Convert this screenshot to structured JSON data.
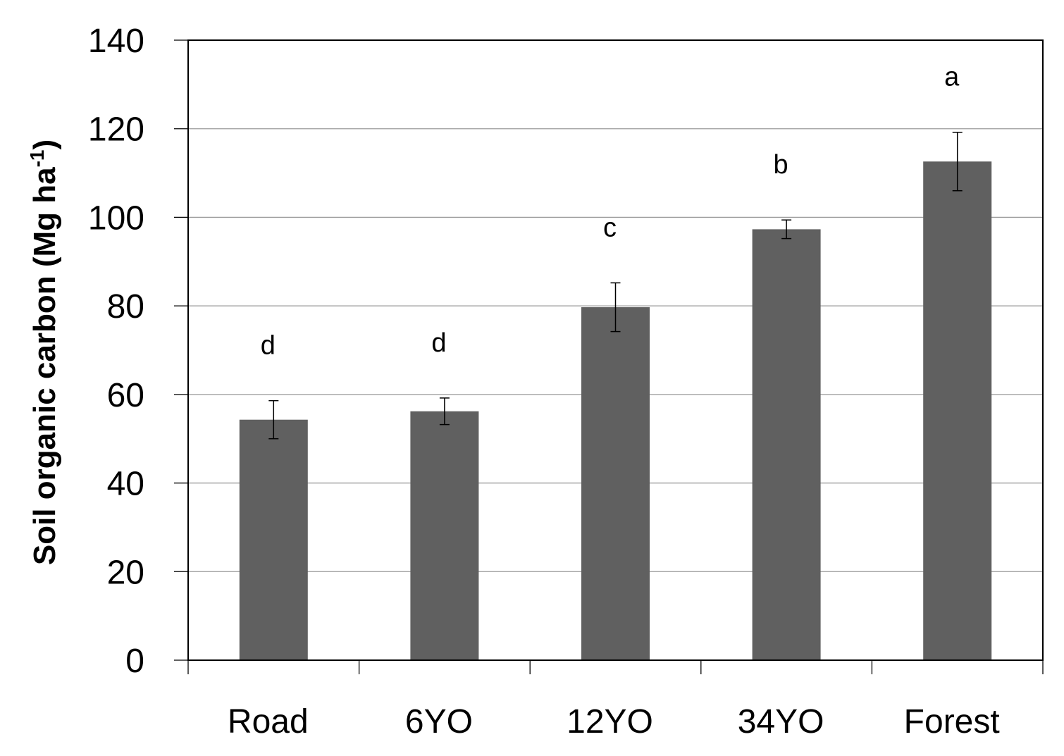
{
  "chart_data": {
    "type": "bar",
    "title": "",
    "xlabel": "",
    "ylabel": {
      "main": "Soil organic carbon (Mg ha",
      "superscript": "-1",
      "close": ")"
    },
    "ylim": [
      0,
      140
    ],
    "yticks": [
      "0",
      "20",
      "40",
      "60",
      "80",
      "100",
      "120",
      "140"
    ],
    "grid": true,
    "legend": "none",
    "categories": [
      "Road",
      "6YO",
      "12YO",
      "34YO",
      "Forest"
    ],
    "series": [
      {
        "values": [
          54.3,
          56.2,
          79.7,
          97.3,
          112.6
        ],
        "error": [
          4.3,
          3.0,
          5.5,
          2.1,
          6.6
        ],
        "significance": [
          "d",
          "d",
          "c",
          "b",
          "a"
        ],
        "color": "#606060"
      }
    ]
  }
}
